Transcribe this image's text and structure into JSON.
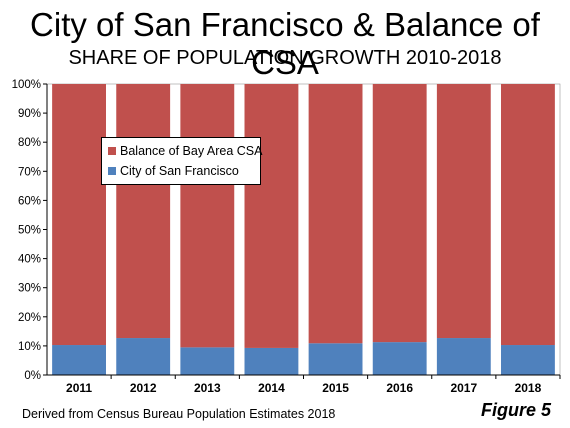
{
  "title": "City of San Francisco & Balance of CSA",
  "subtitle": "SHARE OF POPULATION GROWTH 2010-2018",
  "source_note": "Derived from Census Bureau Population Estimates 2018",
  "figure_label": "Figure 5",
  "chart_data": {
    "type": "bar",
    "stacked": true,
    "categories": [
      "2011",
      "2012",
      "2013",
      "2014",
      "2015",
      "2016",
      "2017",
      "2018"
    ],
    "series": [
      {
        "name": "City of San Francisco",
        "color": "#4f81bd",
        "values": [
          10.3,
          12.7,
          9.5,
          9.3,
          10.9,
          11.3,
          12.7,
          10.3
        ]
      },
      {
        "name": "Balance of Bay Area CSA",
        "color": "#c0504d",
        "values": [
          89.7,
          87.3,
          90.5,
          90.7,
          89.1,
          88.7,
          87.3,
          89.7
        ]
      }
    ],
    "ylim": [
      0,
      100
    ],
    "y_ticks": [
      "0%",
      "10%",
      "20%",
      "30%",
      "40%",
      "50%",
      "60%",
      "70%",
      "80%",
      "90%",
      "100%"
    ],
    "legend": {
      "placement": "upper-left",
      "entries": [
        "Balance of Bay Area CSA",
        "City of San Francisco"
      ]
    },
    "grid": false
  }
}
